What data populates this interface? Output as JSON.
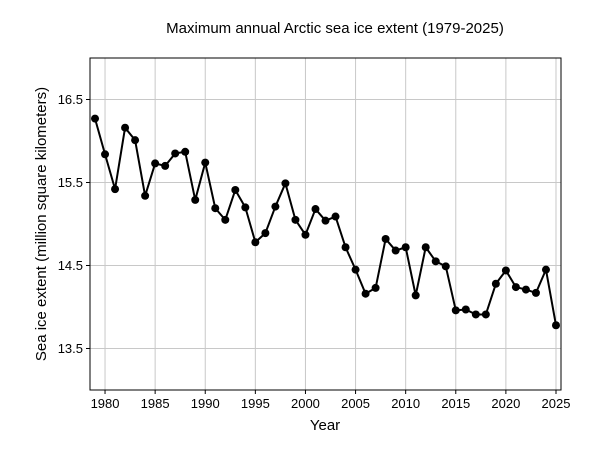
{
  "chart_data": {
    "type": "line",
    "title": "Maximum annual Arctic sea ice extent (1979-2025)",
    "xlabel": "Year",
    "ylabel": "Sea ice extent (million square kilometers)",
    "xlim": [
      1978.5,
      2025.5
    ],
    "ylim": [
      13.0,
      17.0
    ],
    "x_ticks": [
      1980,
      1985,
      1990,
      1995,
      2000,
      2005,
      2010,
      2015,
      2020,
      2025
    ],
    "x_tick_labels": [
      "1980",
      "1985",
      "1990",
      "1995",
      "2000",
      "2005",
      "2010",
      "2015",
      "2020",
      "2025"
    ],
    "y_ticks": [
      13.5,
      14.5,
      15.5,
      16.5
    ],
    "y_tick_labels": [
      "13.5",
      "14.5",
      "15.5",
      "16.5"
    ],
    "grid": true,
    "line_color": "#000000",
    "marker_color": "#000000",
    "series": [
      {
        "x": [
          1979,
          1980,
          1981,
          1982,
          1983,
          1984,
          1985,
          1986,
          1987,
          1988,
          1989,
          1990,
          1991,
          1992,
          1993,
          1994,
          1995,
          1996,
          1997,
          1998,
          1999,
          2000,
          2001,
          2002,
          2003,
          2004,
          2005,
          2006,
          2007,
          2008,
          2009,
          2010,
          2011,
          2012,
          2013,
          2014,
          2015,
          2016,
          2017,
          2018,
          2019,
          2020,
          2021,
          2022,
          2023,
          2024,
          2025
        ],
        "values": [
          16.27,
          15.84,
          15.42,
          16.16,
          16.01,
          15.34,
          15.73,
          15.7,
          15.85,
          15.87,
          15.29,
          15.74,
          15.19,
          15.05,
          15.41,
          15.2,
          14.78,
          14.89,
          15.21,
          15.49,
          15.05,
          14.87,
          15.18,
          15.04,
          15.09,
          14.72,
          14.45,
          14.16,
          14.23,
          14.82,
          14.68,
          14.72,
          14.14,
          14.72,
          14.55,
          14.49,
          13.96,
          13.97,
          13.91,
          13.91,
          14.28,
          14.44,
          14.24,
          14.21,
          14.17,
          14.45,
          13.78
        ]
      }
    ]
  }
}
